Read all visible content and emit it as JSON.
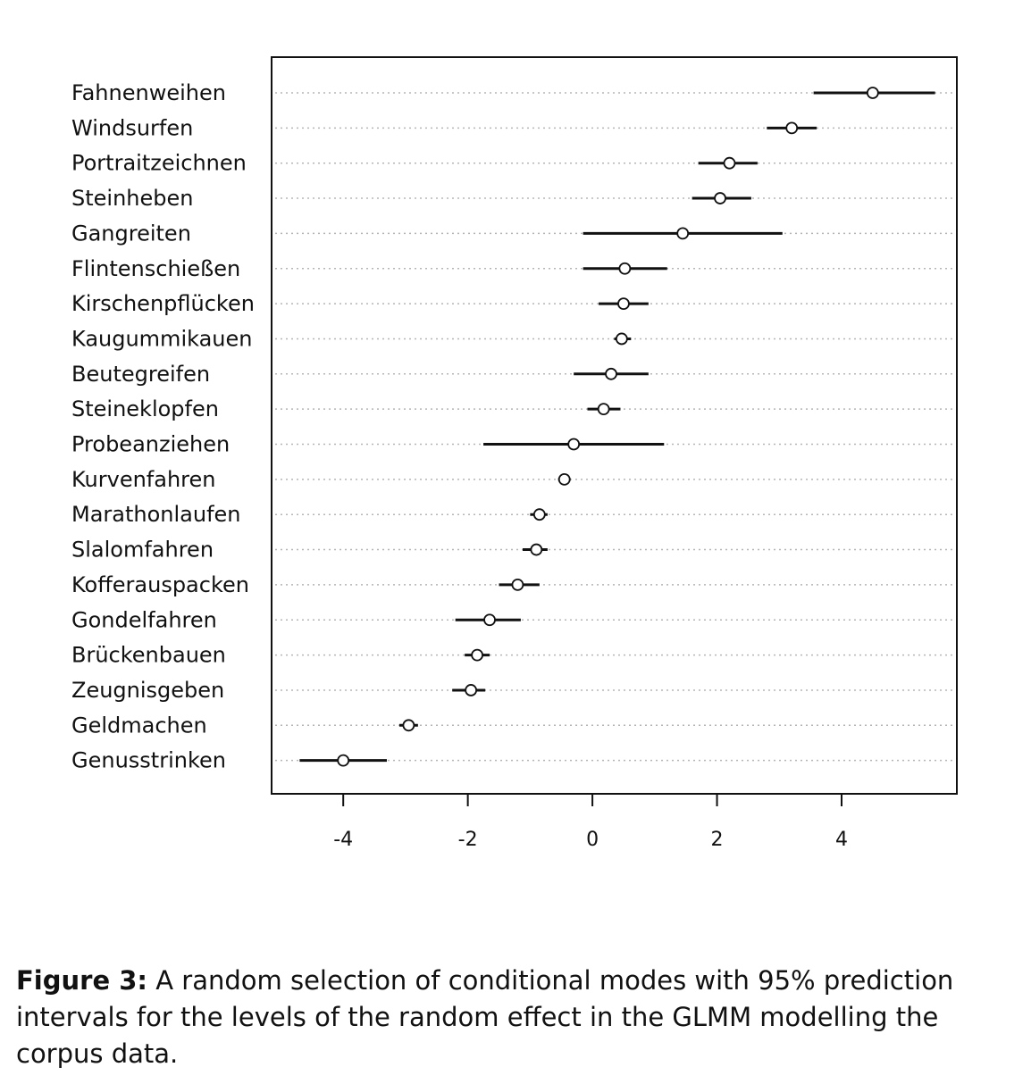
{
  "chart_data": {
    "type": "dot-interval",
    "categories": [
      "Fahnenweihen",
      "Windsurfen",
      "Portraitzeichnen",
      "Steinheben",
      "Gangreiten",
      "Flintenschießen",
      "Kirschenpflücken",
      "Kaugummikauen",
      "Beutegreifen",
      "Steineklopfen",
      "Probeanziehen",
      "Kurvenfahren",
      "Marathonlaufen",
      "Slalomfahren",
      "Kofferauspacken",
      "Gondelfahren",
      "Brückenbauen",
      "Zeugnisgeben",
      "Geldmachen",
      "Genusstrinken"
    ],
    "estimates": [
      4.5,
      3.2,
      2.2,
      2.05,
      1.45,
      0.52,
      0.5,
      0.47,
      0.3,
      0.18,
      -0.3,
      -0.45,
      -0.85,
      -0.9,
      -1.2,
      -1.65,
      -1.85,
      -1.95,
      -2.95,
      -4.0
    ],
    "lower": [
      3.55,
      2.8,
      1.7,
      1.6,
      -0.15,
      -0.15,
      0.1,
      0.35,
      -0.3,
      -0.08,
      -1.75,
      -0.55,
      -1.0,
      -1.12,
      -1.5,
      -2.2,
      -2.05,
      -2.25,
      -3.1,
      -4.7
    ],
    "upper": [
      5.5,
      3.6,
      2.65,
      2.55,
      3.05,
      1.2,
      0.9,
      0.62,
      0.9,
      0.45,
      1.15,
      -0.35,
      -0.72,
      -0.72,
      -0.85,
      -1.15,
      -1.65,
      -1.72,
      -2.8,
      -3.3
    ],
    "x_ticks": [
      "-4",
      "-2",
      "0",
      "2",
      "4"
    ],
    "x_tick_values": [
      -4,
      -2,
      0,
      2,
      4
    ],
    "xlim": [
      -5.15,
      5.85
    ],
    "grid": "dotted horizontal guide per row"
  },
  "caption": {
    "label": "Figure 3:",
    "text": " A random selection of conditional modes with 95% prediction intervals for the levels of the random effect in the GLMM modelling the corpus data."
  }
}
